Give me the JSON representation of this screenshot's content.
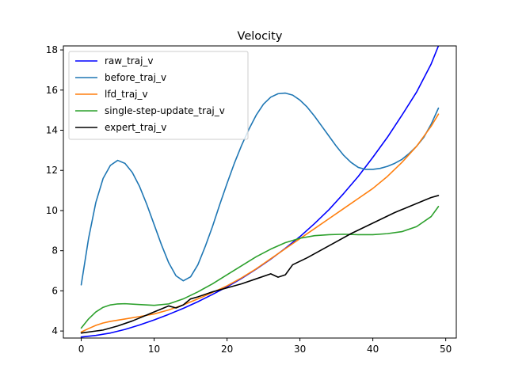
{
  "chart_data": {
    "type": "line",
    "title": "Velocity",
    "xlabel": "",
    "ylabel": "",
    "xlim": [
      -2.45,
      51.45
    ],
    "ylim": [
      3.65,
      18.2
    ],
    "xticks": [
      0,
      10,
      20,
      30,
      40,
      50
    ],
    "yticks": [
      4,
      6,
      8,
      10,
      12,
      14,
      16,
      18
    ],
    "grid": false,
    "legend_position": "top-left",
    "series": [
      {
        "name": "raw_traj_v",
        "color": "#0000ff",
        "x": [
          0,
          2,
          4,
          6,
          8,
          10,
          12,
          14,
          16,
          18,
          20,
          22,
          24,
          26,
          28,
          30,
          32,
          34,
          36,
          38,
          40,
          42,
          44,
          46,
          48,
          49
        ],
        "y": [
          3.7,
          3.78,
          3.9,
          4.08,
          4.3,
          4.55,
          4.83,
          5.13,
          5.46,
          5.82,
          6.2,
          6.62,
          7.08,
          7.58,
          8.12,
          8.7,
          9.35,
          10.05,
          10.85,
          11.7,
          12.65,
          13.65,
          14.75,
          15.9,
          17.3,
          18.2
        ]
      },
      {
        "name": "before_traj_v",
        "color": "#1f77b4",
        "x": [
          0,
          1,
          2,
          3,
          4,
          5,
          6,
          7,
          8,
          9,
          10,
          11,
          12,
          13,
          14,
          15,
          16,
          17,
          18,
          19,
          20,
          21,
          22,
          23,
          24,
          25,
          26,
          27,
          28,
          29,
          30,
          31,
          32,
          33,
          34,
          35,
          36,
          37,
          38,
          39,
          40,
          41,
          42,
          43,
          44,
          45,
          46,
          47,
          48,
          49
        ],
        "y": [
          6.3,
          8.6,
          10.4,
          11.6,
          12.25,
          12.5,
          12.35,
          11.9,
          11.2,
          10.3,
          9.3,
          8.3,
          7.4,
          6.75,
          6.5,
          6.7,
          7.3,
          8.2,
          9.2,
          10.3,
          11.35,
          12.35,
          13.25,
          14.05,
          14.75,
          15.3,
          15.65,
          15.82,
          15.85,
          15.75,
          15.5,
          15.15,
          14.7,
          14.2,
          13.7,
          13.2,
          12.75,
          12.4,
          12.15,
          12.05,
          12.05,
          12.1,
          12.2,
          12.35,
          12.55,
          12.85,
          13.2,
          13.65,
          14.3,
          15.1
        ]
      },
      {
        "name": "lfd_traj_v",
        "color": "#ff7f0e",
        "x": [
          0,
          1,
          2,
          3,
          4,
          6,
          8,
          10,
          12,
          14,
          16,
          18,
          20,
          22,
          24,
          26,
          28,
          30,
          32,
          34,
          36,
          38,
          40,
          42,
          44,
          46,
          48,
          49
        ],
        "y": [
          3.95,
          4.12,
          4.28,
          4.4,
          4.48,
          4.6,
          4.72,
          4.85,
          5.05,
          5.3,
          5.6,
          5.92,
          6.25,
          6.65,
          7.1,
          7.6,
          8.1,
          8.6,
          9.1,
          9.6,
          10.1,
          10.6,
          11.1,
          11.7,
          12.4,
          13.2,
          14.2,
          14.8
        ]
      },
      {
        "name": "single-step-update_traj_v",
        "color": "#2ca02c",
        "x": [
          0,
          1,
          2,
          3,
          4,
          5,
          6,
          8,
          10,
          12,
          14,
          16,
          18,
          20,
          22,
          24,
          26,
          28,
          30,
          32,
          34,
          36,
          38,
          40,
          42,
          44,
          46,
          48,
          49
        ],
        "y": [
          4.15,
          4.6,
          4.95,
          5.18,
          5.3,
          5.35,
          5.36,
          5.32,
          5.28,
          5.35,
          5.6,
          5.95,
          6.35,
          6.8,
          7.25,
          7.7,
          8.08,
          8.4,
          8.62,
          8.75,
          8.8,
          8.82,
          8.8,
          8.8,
          8.85,
          8.95,
          9.2,
          9.7,
          10.2
        ]
      },
      {
        "name": "expert_traj_v",
        "color": "#000000",
        "x": [
          0,
          2,
          3,
          5,
          7,
          9,
          10,
          11,
          12,
          13,
          14,
          15,
          16,
          18,
          20,
          22,
          24,
          26,
          27,
          28,
          29,
          31,
          33,
          35,
          37,
          39,
          41,
          43,
          45,
          47,
          48,
          49
        ],
        "y": [
          3.9,
          4.0,
          4.05,
          4.25,
          4.5,
          4.8,
          4.95,
          5.1,
          5.25,
          5.15,
          5.3,
          5.6,
          5.7,
          5.95,
          6.15,
          6.35,
          6.6,
          6.85,
          6.68,
          6.8,
          7.3,
          7.65,
          8.05,
          8.45,
          8.85,
          9.2,
          9.55,
          9.9,
          10.2,
          10.5,
          10.65,
          10.75
        ]
      }
    ]
  }
}
